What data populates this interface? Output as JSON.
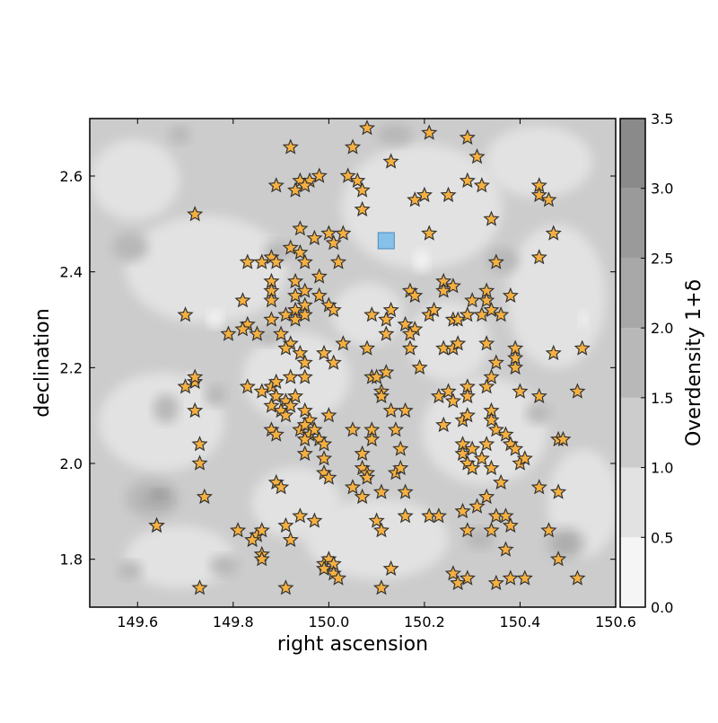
{
  "chart_data": {
    "type": "scatter",
    "title": "",
    "xlabel": "right ascension",
    "ylabel": "declination",
    "xlim": [
      149.5,
      150.6
    ],
    "ylim": [
      1.7,
      2.72
    ],
    "xticks": [
      149.6,
      149.8,
      150.0,
      150.2,
      150.4,
      150.6
    ],
    "xtick_labels": [
      "149.6",
      "149.8",
      "150.0",
      "150.2",
      "150.4",
      "150.6"
    ],
    "yticks": [
      1.8,
      2.0,
      2.2,
      2.4,
      2.6
    ],
    "ytick_labels": [
      "1.8",
      "2.0",
      "2.2",
      "2.4",
      "2.6"
    ],
    "grid": false,
    "background": {
      "type": "filled-contour",
      "description_levels": [
        0.0,
        0.5,
        1.0,
        1.5,
        2.0,
        2.5,
        3.0,
        3.5
      ],
      "colors": [
        "#f5f5f5",
        "#e2e2e2",
        "#cccccc",
        "#b8b8b8",
        "#a8a8a8",
        "#9a9a9a",
        "#8a8a8a"
      ],
      "base_level": 1.0
    },
    "colorbar": {
      "label": "Overdensity 1+δ",
      "levels": [
        0.0,
        0.5,
        1.0,
        1.5,
        2.0,
        2.5,
        3.0,
        3.5
      ],
      "tick_labels": [
        "0.0",
        "0.5",
        "1.0",
        "1.5",
        "2.0",
        "2.5",
        "3.0",
        "3.5"
      ],
      "colors": [
        "#f5f5f5",
        "#e2e2e2",
        "#cccccc",
        "#b8b8b8",
        "#a8a8a8",
        "#9a9a9a",
        "#8a8a8a"
      ]
    },
    "series": [
      {
        "marker": "star",
        "color": "#f5b041",
        "edge_color": "#333333",
        "points": [
          [
            150.08,
            2.7
          ],
          [
            150.21,
            2.69
          ],
          [
            150.29,
            2.68
          ],
          [
            149.92,
            2.66
          ],
          [
            150.05,
            2.66
          ],
          [
            150.31,
            2.64
          ],
          [
            150.13,
            2.63
          ],
          [
            150.04,
            2.6
          ],
          [
            149.94,
            2.59
          ],
          [
            149.96,
            2.59
          ],
          [
            149.98,
            2.6
          ],
          [
            150.06,
            2.59
          ],
          [
            149.89,
            2.58
          ],
          [
            149.95,
            2.58
          ],
          [
            150.29,
            2.59
          ],
          [
            149.93,
            2.57
          ],
          [
            150.07,
            2.57
          ],
          [
            150.18,
            2.55
          ],
          [
            150.2,
            2.56
          ],
          [
            150.25,
            2.56
          ],
          [
            150.32,
            2.58
          ],
          [
            150.44,
            2.58
          ],
          [
            150.44,
            2.56
          ],
          [
            150.46,
            2.55
          ],
          [
            150.07,
            2.53
          ],
          [
            149.72,
            2.52
          ],
          [
            150.34,
            2.51
          ],
          [
            149.94,
            2.49
          ],
          [
            149.97,
            2.47
          ],
          [
            150.0,
            2.48
          ],
          [
            150.01,
            2.46
          ],
          [
            150.03,
            2.48
          ],
          [
            150.21,
            2.48
          ],
          [
            150.47,
            2.48
          ],
          [
            149.92,
            2.45
          ],
          [
            149.94,
            2.44
          ],
          [
            149.83,
            2.42
          ],
          [
            149.86,
            2.42
          ],
          [
            149.88,
            2.43
          ],
          [
            149.89,
            2.42
          ],
          [
            149.95,
            2.42
          ],
          [
            150.02,
            2.42
          ],
          [
            150.35,
            2.42
          ],
          [
            150.44,
            2.43
          ],
          [
            149.88,
            2.38
          ],
          [
            149.93,
            2.38
          ],
          [
            149.98,
            2.39
          ],
          [
            150.24,
            2.38
          ],
          [
            149.88,
            2.36
          ],
          [
            149.93,
            2.35
          ],
          [
            149.95,
            2.36
          ],
          [
            149.98,
            2.35
          ],
          [
            150.17,
            2.36
          ],
          [
            150.18,
            2.35
          ],
          [
            150.24,
            2.36
          ],
          [
            150.26,
            2.37
          ],
          [
            150.33,
            2.36
          ],
          [
            150.33,
            2.34
          ],
          [
            150.38,
            2.35
          ],
          [
            149.7,
            2.31
          ],
          [
            149.82,
            2.34
          ],
          [
            149.88,
            2.34
          ],
          [
            149.93,
            2.32
          ],
          [
            149.95,
            2.33
          ],
          [
            150.0,
            2.33
          ],
          [
            150.01,
            2.32
          ],
          [
            150.09,
            2.31
          ],
          [
            150.13,
            2.32
          ],
          [
            150.21,
            2.31
          ],
          [
            150.22,
            2.32
          ],
          [
            150.26,
            2.3
          ],
          [
            150.29,
            2.31
          ],
          [
            150.3,
            2.34
          ],
          [
            150.32,
            2.31
          ],
          [
            150.34,
            2.32
          ],
          [
            150.36,
            2.31
          ],
          [
            149.83,
            2.29
          ],
          [
            149.88,
            2.3
          ],
          [
            149.91,
            2.31
          ],
          [
            149.93,
            2.3
          ],
          [
            149.95,
            2.31
          ],
          [
            150.12,
            2.3
          ],
          [
            150.16,
            2.29
          ],
          [
            150.18,
            2.28
          ],
          [
            150.27,
            2.3
          ],
          [
            149.79,
            2.27
          ],
          [
            149.82,
            2.28
          ],
          [
            149.85,
            2.27
          ],
          [
            149.9,
            2.27
          ],
          [
            149.92,
            2.25
          ],
          [
            150.12,
            2.27
          ],
          [
            150.17,
            2.27
          ],
          [
            150.17,
            2.24
          ],
          [
            150.24,
            2.24
          ],
          [
            150.26,
            2.24
          ],
          [
            150.27,
            2.25
          ],
          [
            149.91,
            2.24
          ],
          [
            149.94,
            2.23
          ],
          [
            149.99,
            2.23
          ],
          [
            150.03,
            2.25
          ],
          [
            150.08,
            2.24
          ],
          [
            150.33,
            2.25
          ],
          [
            150.39,
            2.24
          ],
          [
            150.53,
            2.24
          ],
          [
            150.47,
            2.23
          ],
          [
            149.95,
            2.21
          ],
          [
            150.01,
            2.21
          ],
          [
            150.19,
            2.2
          ],
          [
            150.35,
            2.21
          ],
          [
            150.39,
            2.2
          ],
          [
            150.39,
            2.22
          ],
          [
            149.92,
            2.18
          ],
          [
            149.95,
            2.18
          ],
          [
            150.09,
            2.18
          ],
          [
            150.1,
            2.18
          ],
          [
            150.12,
            2.19
          ],
          [
            150.34,
            2.18
          ],
          [
            149.7,
            2.16
          ],
          [
            149.72,
            2.17
          ],
          [
            149.72,
            2.18
          ],
          [
            149.83,
            2.16
          ],
          [
            149.86,
            2.15
          ],
          [
            149.88,
            2.16
          ],
          [
            149.89,
            2.17
          ],
          [
            150.11,
            2.15
          ],
          [
            150.29,
            2.16
          ],
          [
            150.33,
            2.16
          ],
          [
            150.4,
            2.15
          ],
          [
            150.44,
            2.14
          ],
          [
            150.52,
            2.15
          ],
          [
            149.89,
            2.14
          ],
          [
            149.91,
            2.13
          ],
          [
            149.93,
            2.14
          ],
          [
            150.11,
            2.14
          ],
          [
            150.23,
            2.14
          ],
          [
            150.25,
            2.15
          ],
          [
            150.29,
            2.14
          ],
          [
            149.72,
            2.11
          ],
          [
            149.88,
            2.12
          ],
          [
            149.9,
            2.11
          ],
          [
            149.91,
            2.1
          ],
          [
            149.92,
            2.12
          ],
          [
            149.95,
            2.11
          ],
          [
            149.96,
            2.09
          ],
          [
            150.0,
            2.1
          ],
          [
            150.13,
            2.11
          ],
          [
            150.16,
            2.11
          ],
          [
            150.26,
            2.13
          ],
          [
            150.34,
            2.11
          ],
          [
            150.34,
            2.09
          ],
          [
            149.88,
            2.07
          ],
          [
            149.94,
            2.07
          ],
          [
            149.95,
            2.08
          ],
          [
            149.96,
            2.06
          ],
          [
            149.97,
            2.07
          ],
          [
            150.05,
            2.07
          ],
          [
            150.09,
            2.07
          ],
          [
            150.14,
            2.07
          ],
          [
            150.24,
            2.08
          ],
          [
            150.28,
            2.09
          ],
          [
            150.29,
            2.1
          ],
          [
            150.35,
            2.07
          ],
          [
            150.37,
            2.06
          ],
          [
            149.73,
            2.04
          ],
          [
            149.89,
            2.06
          ],
          [
            149.95,
            2.05
          ],
          [
            149.98,
            2.05
          ],
          [
            149.99,
            2.04
          ],
          [
            150.09,
            2.05
          ],
          [
            150.15,
            2.03
          ],
          [
            150.28,
            2.04
          ],
          [
            150.28,
            2.02
          ],
          [
            150.3,
            2.03
          ],
          [
            150.33,
            2.04
          ],
          [
            150.38,
            2.04
          ],
          [
            150.39,
            2.03
          ],
          [
            150.48,
            2.05
          ],
          [
            150.49,
            2.05
          ],
          [
            149.73,
            2.0
          ],
          [
            149.95,
            2.02
          ],
          [
            149.99,
            2.01
          ],
          [
            150.07,
            2.02
          ],
          [
            150.07,
            1.99
          ],
          [
            150.08,
            1.98
          ],
          [
            150.14,
            1.98
          ],
          [
            150.15,
            1.99
          ],
          [
            150.29,
            2.0
          ],
          [
            150.3,
            1.99
          ],
          [
            150.32,
            2.01
          ],
          [
            150.34,
            1.99
          ],
          [
            150.4,
            2.0
          ],
          [
            150.41,
            2.01
          ],
          [
            149.99,
            1.98
          ],
          [
            150.0,
            1.97
          ],
          [
            149.89,
            1.96
          ],
          [
            149.9,
            1.95
          ],
          [
            150.05,
            1.95
          ],
          [
            150.08,
            1.97
          ],
          [
            150.11,
            1.94
          ],
          [
            150.16,
            1.94
          ],
          [
            150.36,
            1.96
          ],
          [
            150.44,
            1.95
          ],
          [
            150.48,
            1.94
          ],
          [
            149.74,
            1.93
          ],
          [
            150.07,
            1.93
          ],
          [
            150.31,
            1.91
          ],
          [
            150.33,
            1.93
          ],
          [
            150.21,
            1.89
          ],
          [
            150.23,
            1.89
          ],
          [
            150.28,
            1.9
          ],
          [
            150.35,
            1.89
          ],
          [
            150.37,
            1.89
          ],
          [
            149.64,
            1.87
          ],
          [
            149.64,
            1.87
          ],
          [
            149.91,
            1.87
          ],
          [
            149.94,
            1.89
          ],
          [
            149.97,
            1.88
          ],
          [
            150.1,
            1.88
          ],
          [
            150.11,
            1.86
          ],
          [
            150.16,
            1.89
          ],
          [
            150.29,
            1.86
          ],
          [
            150.34,
            1.86
          ],
          [
            150.38,
            1.87
          ],
          [
            150.46,
            1.86
          ],
          [
            149.81,
            1.86
          ],
          [
            149.85,
            1.85
          ],
          [
            149.86,
            1.86
          ],
          [
            149.84,
            1.84
          ],
          [
            149.92,
            1.84
          ],
          [
            149.86,
            1.81
          ],
          [
            149.86,
            1.8
          ],
          [
            149.99,
            1.79
          ],
          [
            150.0,
            1.8
          ],
          [
            150.01,
            1.79
          ],
          [
            150.01,
            1.77
          ],
          [
            150.13,
            1.78
          ],
          [
            150.26,
            1.77
          ],
          [
            150.29,
            1.76
          ],
          [
            150.37,
            1.82
          ],
          [
            150.48,
            1.8
          ],
          [
            149.73,
            1.74
          ],
          [
            149.91,
            1.74
          ],
          [
            150.11,
            1.74
          ],
          [
            150.27,
            1.75
          ],
          [
            150.35,
            1.75
          ],
          [
            150.38,
            1.76
          ],
          [
            150.41,
            1.76
          ],
          [
            150.52,
            1.76
          ],
          [
            149.99,
            1.78
          ],
          [
            150.02,
            1.76
          ]
        ]
      },
      {
        "marker": "square",
        "color": "#85c1e9",
        "edge_color": "#4a8bbd",
        "points": [
          [
            150.12,
            2.465
          ]
        ]
      }
    ]
  }
}
